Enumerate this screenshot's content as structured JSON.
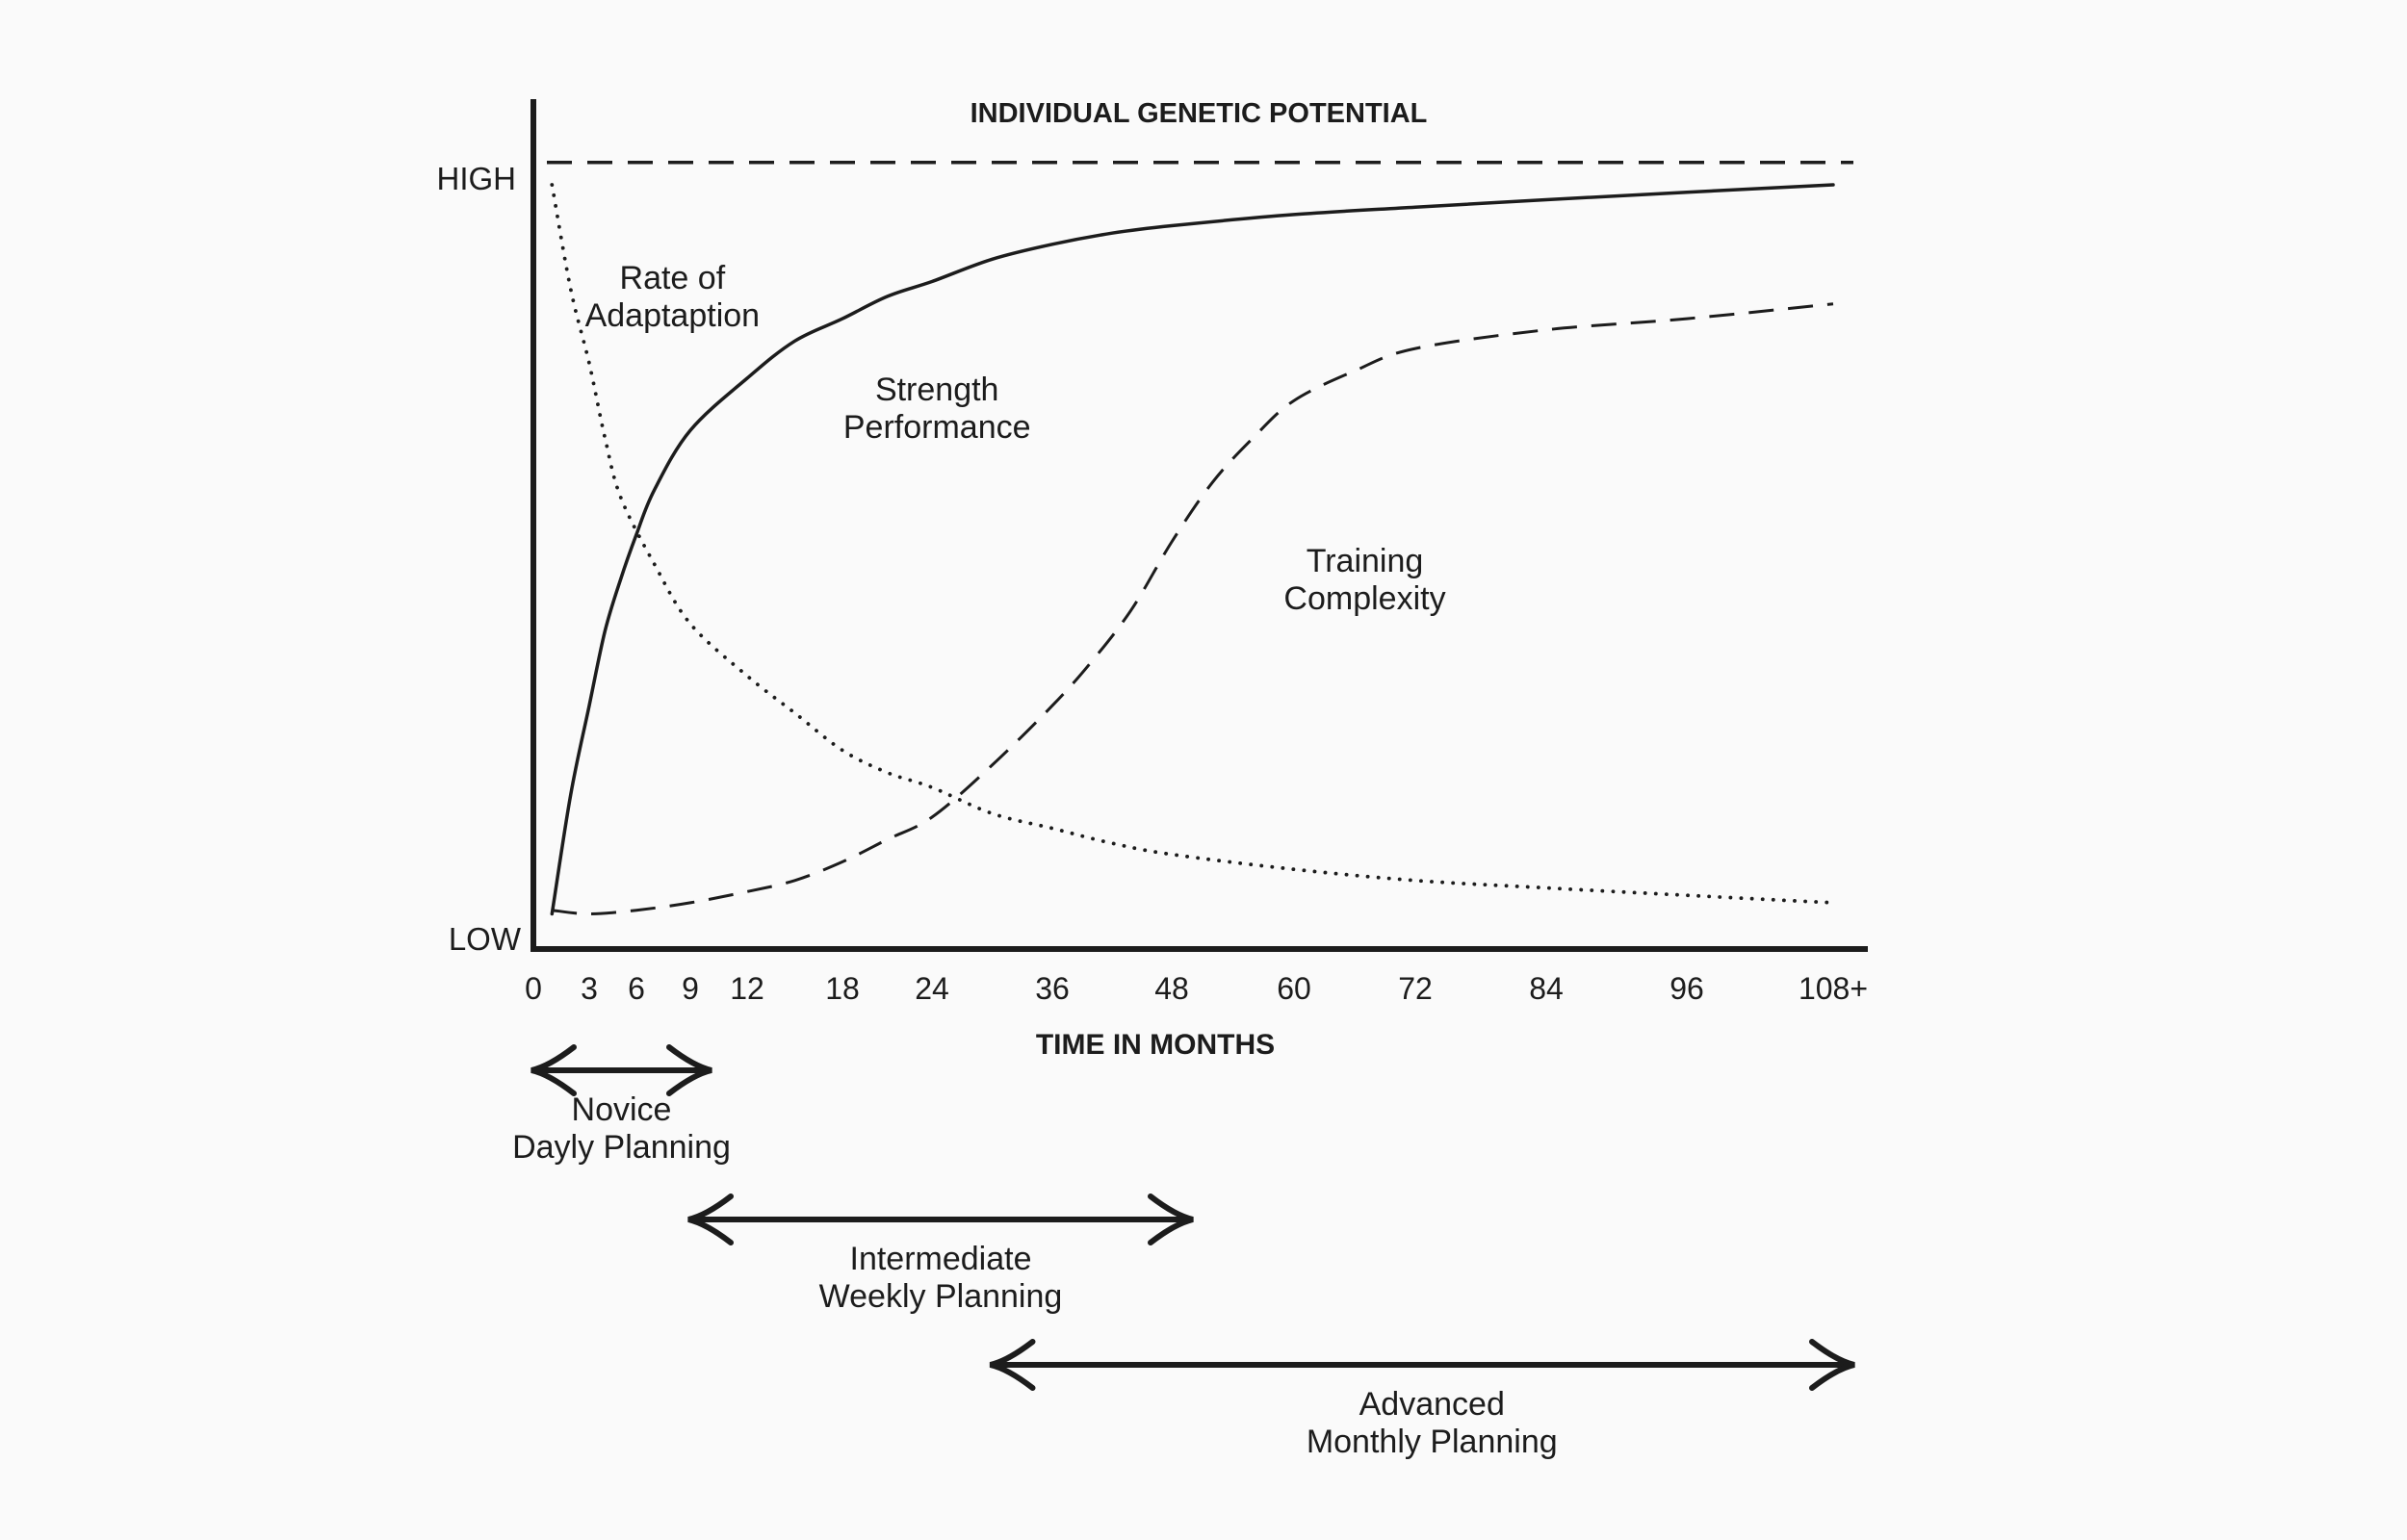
{
  "chart_data": {
    "type": "line",
    "title": "INDIVIDUAL GENETIC POTENTIAL",
    "xlabel": "TIME IN MONTHS",
    "ylabel": "",
    "y_ticks": {
      "high": "HIGH",
      "low": "LOW"
    },
    "ylim": [
      0,
      1
    ],
    "x_ticks": [
      {
        "value": 0,
        "label": "0"
      },
      {
        "value": 3,
        "label": "3"
      },
      {
        "value": 6,
        "label": "6"
      },
      {
        "value": 9,
        "label": "9"
      },
      {
        "value": 12,
        "label": "12"
      },
      {
        "value": 18,
        "label": "18"
      },
      {
        "value": 24,
        "label": "24"
      },
      {
        "value": 36,
        "label": "36"
      },
      {
        "value": 48,
        "label": "48"
      },
      {
        "value": 60,
        "label": "60"
      },
      {
        "value": 72,
        "label": "72"
      },
      {
        "value": 84,
        "label": "84"
      },
      {
        "value": 96,
        "label": "96"
      },
      {
        "value": 108,
        "label": "108+"
      }
    ],
    "genetic_potential": {
      "y": 1.03
    },
    "series": [
      {
        "key": "rate",
        "style": "dotted",
        "label_lines": [
          "Rate of",
          "Adaptaption"
        ],
        "label_at": {
          "x": 8,
          "y": 0.86
        },
        "points": [
          [
            1,
            1.0
          ],
          [
            2,
            0.86
          ],
          [
            3,
            0.76
          ],
          [
            4,
            0.66
          ],
          [
            5,
            0.58
          ],
          [
            7,
            0.49
          ],
          [
            9,
            0.41
          ],
          [
            12,
            0.34
          ],
          [
            15,
            0.29
          ],
          [
            18,
            0.24
          ],
          [
            21,
            0.21
          ],
          [
            24,
            0.19
          ],
          [
            30,
            0.155
          ],
          [
            36,
            0.135
          ],
          [
            42,
            0.115
          ],
          [
            48,
            0.1
          ],
          [
            60,
            0.08
          ],
          [
            72,
            0.065
          ],
          [
            84,
            0.055
          ],
          [
            96,
            0.045
          ],
          [
            108,
            0.035
          ]
        ]
      },
      {
        "key": "strength",
        "style": "solid",
        "label_lines": [
          "Strength",
          "Performance"
        ],
        "label_at": {
          "x": 24.5,
          "y": 0.71
        },
        "points": [
          [
            1,
            0.02
          ],
          [
            2,
            0.18
          ],
          [
            3,
            0.3
          ],
          [
            4,
            0.4
          ],
          [
            5,
            0.47
          ],
          [
            6,
            0.53
          ],
          [
            7,
            0.59
          ],
          [
            9,
            0.67
          ],
          [
            12,
            0.74
          ],
          [
            15,
            0.79
          ],
          [
            18,
            0.82
          ],
          [
            21,
            0.85
          ],
          [
            24,
            0.87
          ],
          [
            30,
            0.9
          ],
          [
            36,
            0.92
          ],
          [
            42,
            0.935
          ],
          [
            48,
            0.945
          ],
          [
            60,
            0.96
          ],
          [
            72,
            0.97
          ],
          [
            84,
            0.98
          ],
          [
            96,
            0.99
          ],
          [
            108,
            1.0
          ]
        ]
      },
      {
        "key": "complexity",
        "style": "dashed",
        "label_lines": [
          "Training",
          "Complexity"
        ],
        "label_at": {
          "x": 67,
          "y": 0.48
        },
        "points": [
          [
            1,
            0.025
          ],
          [
            3,
            0.02
          ],
          [
            6,
            0.025
          ],
          [
            9,
            0.035
          ],
          [
            12,
            0.05
          ],
          [
            15,
            0.065
          ],
          [
            18,
            0.09
          ],
          [
            21,
            0.12
          ],
          [
            24,
            0.15
          ],
          [
            30,
            0.22
          ],
          [
            36,
            0.3
          ],
          [
            40,
            0.36
          ],
          [
            44,
            0.43
          ],
          [
            48,
            0.52
          ],
          [
            52,
            0.6
          ],
          [
            56,
            0.66
          ],
          [
            60,
            0.71
          ],
          [
            66,
            0.75
          ],
          [
            72,
            0.78
          ],
          [
            84,
            0.805
          ],
          [
            96,
            0.82
          ],
          [
            108,
            0.84
          ]
        ]
      }
    ],
    "ranges": [
      {
        "key": "novice",
        "from": 0,
        "to": 9,
        "label_lines": [
          "Novice",
          "Dayly Planning"
        ]
      },
      {
        "key": "intermediate",
        "from": 9,
        "to": 48,
        "label_lines": [
          "Intermediate",
          "Weekly Planning"
        ]
      },
      {
        "key": "advanced",
        "from": 30,
        "to": 108,
        "label_lines": [
          "Advanced",
          "Monthly Planning"
        ]
      }
    ]
  },
  "colors": {
    "ink": "#1c1c1c",
    "background": "#fafafa"
  }
}
